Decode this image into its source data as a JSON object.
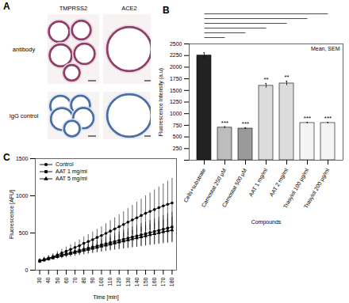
{
  "panel_a": {
    "label": "A",
    "columns": [
      "TMPRSS2",
      "ACE2"
    ],
    "rows": [
      "antibody",
      "IgG control"
    ]
  },
  "chart_data": [
    {
      "type": "bar",
      "panel_label": "B",
      "annotations": [
        "Mean, SEM"
      ],
      "x_label": "Compounds",
      "y_label": "Fluorescence Intensity (a.u)",
      "categories": [
        "Cells+substrate",
        "Camostat 250 µM",
        "Camostat 500 µM",
        "AAT 1 mg/ml",
        "AAT 2 mg/ml",
        "Trasylol 100 µg/ml",
        "Trasylol 200 µg/ml"
      ],
      "values": [
        2250,
        700,
        680,
        1600,
        1650,
        800,
        800
      ],
      "errors": [
        60,
        20,
        20,
        50,
        50,
        15,
        15
      ],
      "significance": [
        null,
        "***",
        "***",
        "**",
        "**",
        "***",
        "***"
      ],
      "colors": [
        "#222222",
        "#bdbdbd",
        "#9a9a9a",
        "#dcdcdc",
        "#dcdcdc",
        "#f4f4f4",
        "#f4f4f4"
      ],
      "ylim": [
        0,
        2500
      ],
      "yticks": [
        0,
        250,
        500,
        750,
        1000,
        1250,
        1500,
        1750,
        2000,
        2250,
        2500
      ]
    },
    {
      "type": "line",
      "panel_label": "C",
      "x_label": "Time [min]",
      "y_label": "Fluorescence [AFU]",
      "x": [
        30,
        35,
        40,
        45,
        50,
        55,
        60,
        65,
        70,
        75,
        80,
        85,
        90,
        95,
        100,
        105,
        110,
        115,
        120,
        125,
        130,
        135,
        140,
        145,
        150,
        155,
        160,
        165,
        170,
        175,
        180
      ],
      "series": [
        {
          "name": "Control",
          "color": "#000000",
          "marker": "circle",
          "values": [
            120,
            140,
            160,
            180,
            205,
            230,
            255,
            280,
            305,
            330,
            360,
            385,
            410,
            440,
            465,
            495,
            525,
            555,
            585,
            615,
            645,
            675,
            705,
            735,
            765,
            790,
            815,
            840,
            865,
            885,
            905
          ],
          "errors": [
            30,
            33,
            37,
            41,
            46,
            52,
            58,
            64,
            71,
            78,
            86,
            94,
            102,
            111,
            120,
            130,
            140,
            150,
            161,
            172,
            184,
            196,
            209,
            222,
            236,
            250,
            265,
            280,
            296,
            312,
            330
          ]
        },
        {
          "name": "AAT 1 mg/ml",
          "color": "#000000",
          "marker": "square",
          "values": [
            130,
            145,
            160,
            175,
            190,
            205,
            220,
            235,
            250,
            265,
            280,
            295,
            310,
            325,
            340,
            355,
            370,
            385,
            400,
            415,
            430,
            445,
            460,
            475,
            490,
            505,
            520,
            535,
            550,
            565,
            580
          ],
          "errors": [
            25,
            27,
            30,
            33,
            37,
            41,
            45,
            50,
            55,
            60,
            65,
            71,
            77,
            83,
            89,
            95,
            102,
            109,
            116,
            123,
            130,
            137,
            144,
            151,
            158,
            165,
            172,
            179,
            186,
            193,
            200
          ]
        },
        {
          "name": "AAT 5 mg/ml",
          "color": "#000000",
          "marker": "triangle",
          "values": [
            120,
            135,
            150,
            165,
            180,
            194,
            208,
            222,
            236,
            250,
            264,
            278,
            292,
            306,
            320,
            334,
            348,
            362,
            376,
            390,
            404,
            418,
            432,
            446,
            460,
            474,
            488,
            502,
            516,
            528,
            540
          ],
          "errors": [
            22,
            24,
            27,
            30,
            33,
            36,
            40,
            44,
            48,
            52,
            57,
            62,
            67,
            72,
            77,
            82,
            88,
            94,
            100,
            106,
            112,
            118,
            124,
            130,
            136,
            142,
            148,
            154,
            160,
            166,
            172
          ]
        }
      ],
      "xlim": [
        25,
        185
      ],
      "xticks": [
        30,
        40,
        50,
        60,
        70,
        80,
        90,
        100,
        110,
        120,
        130,
        140,
        150,
        160,
        170,
        180
      ],
      "ylim": [
        0,
        1500
      ],
      "yticks": [
        0,
        500,
        1000,
        1500
      ],
      "legend": "top-left"
    }
  ]
}
